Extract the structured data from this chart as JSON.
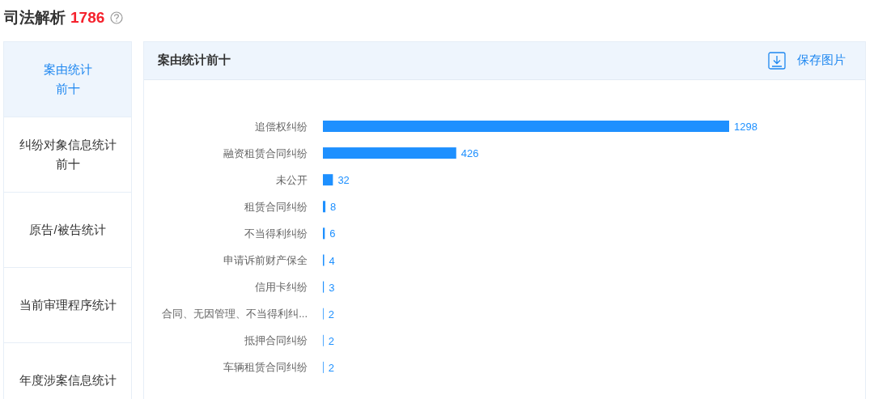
{
  "chart_data": [
    {
      "type": "other",
      "title": "司法解析",
      "subtitle": "1786",
      "annotations": [
        "案由统计前十",
        "纠纷对象信息统计前十",
        "原告/被告统计",
        "当前审理程序统计",
        "年度涉案信息统计"
      ]
    },
    {
      "type": "bar",
      "orientation": "horizontal",
      "title": "案由统计前十",
      "annotations": [
        "保存图片"
      ],
      "categories": [
        "追偿权纠纷",
        "融资租赁合同纠纷",
        "未公开",
        "租赁合同纠纷",
        "不当得利纠纷",
        "申请诉前财产保全",
        "信用卡纠纷",
        "合同、无因管理、不当得利纠...",
        "抵押合同纠纷",
        "车辆租赁合同纠纷"
      ],
      "values": [
        1298,
        426,
        32,
        8,
        6,
        4,
        3,
        2,
        2,
        2
      ],
      "color": "#1e90ff",
      "data_labels": true
    }
  ]
}
